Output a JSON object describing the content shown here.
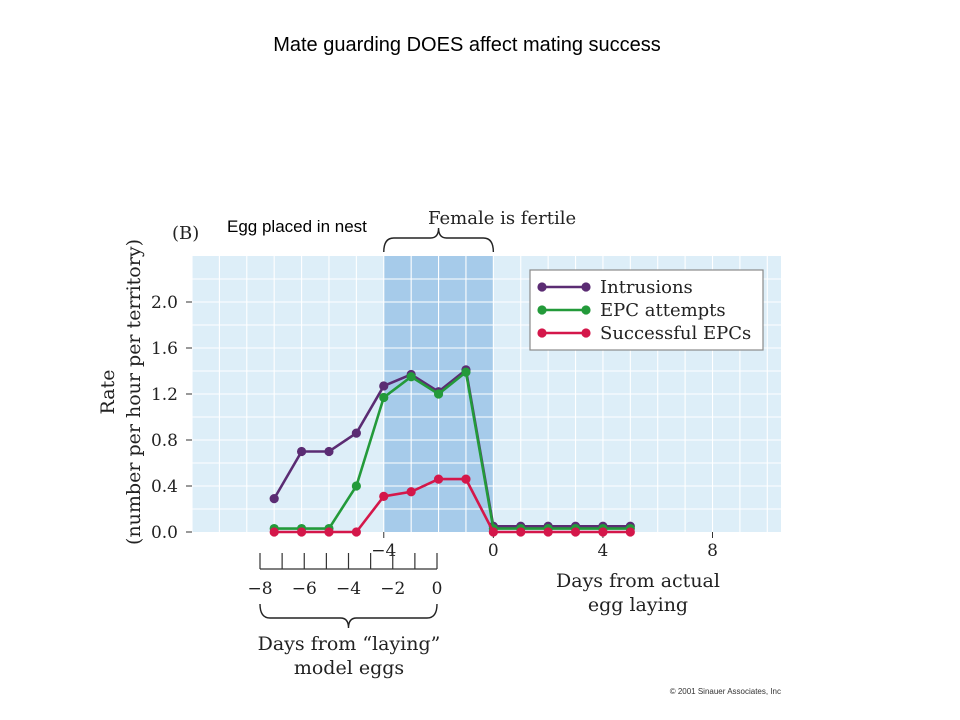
{
  "slide": {
    "title": "Mate guarding DOES affect mating success",
    "annotation": "Egg placed in nest"
  },
  "chart_data": {
    "type": "line",
    "panel_label": "(B)",
    "fertile_label": "Female is fertile",
    "fertile_range": [
      -4,
      0
    ],
    "ylabel_line1": "Rate",
    "ylabel_line2": "(number per hour per territory)",
    "xlabel_top_line1": "Days from actual",
    "xlabel_top_line2": "egg laying",
    "xlabel_bottom_line1": "Days from “laying”",
    "xlabel_bottom_line2": "model eggs",
    "ylim": [
      0,
      2.4
    ],
    "xlim": [
      -11,
      10.5
    ],
    "grid": true,
    "yticks": [
      0.0,
      0.4,
      0.8,
      1.2,
      1.6,
      2.0
    ],
    "ytick_labels": [
      "0.0",
      "0.4",
      "0.8",
      "1.2",
      "1.6",
      "2.0"
    ],
    "xticks_top": [
      -4,
      0,
      4,
      8
    ],
    "xtick_labels_top": [
      "−4",
      "0",
      "4",
      "8"
    ],
    "xticks_bottom_labels": [
      "−8",
      "−6",
      "−4",
      "−2",
      "0"
    ],
    "legend_position": "top-right",
    "colors": {
      "background": "#ddeef8",
      "fertile_band": "#a6cbea",
      "grid": "#ffffff"
    },
    "series": [
      {
        "name": "Intrusions",
        "color": "#5b2c73",
        "x": [
          -8,
          -7,
          -6,
          -5,
          -4,
          -3,
          -2,
          -1,
          0,
          1,
          2,
          3,
          4,
          5
        ],
        "y": [
          0.29,
          0.7,
          0.7,
          0.86,
          1.27,
          1.37,
          1.22,
          1.41,
          0.05,
          0.05,
          0.05,
          0.05,
          0.05,
          0.05
        ]
      },
      {
        "name": "EPC attempts",
        "color": "#239a3a",
        "x": [
          -8,
          -7,
          -6,
          -5,
          -4,
          -3,
          -2,
          -1,
          0,
          1,
          2,
          3,
          4,
          5
        ],
        "y": [
          0.03,
          0.03,
          0.03,
          0.4,
          1.17,
          1.35,
          1.2,
          1.39,
          0.03,
          0.03,
          0.03,
          0.03,
          0.03,
          0.03
        ]
      },
      {
        "name": "Successful EPCs",
        "color": "#d4174a",
        "x": [
          -8,
          -7,
          -6,
          -5,
          -4,
          -3,
          -2,
          -1,
          0,
          1,
          2,
          3,
          4,
          5
        ],
        "y": [
          0.0,
          0.0,
          0.0,
          0.0,
          0.31,
          0.35,
          0.46,
          0.46,
          0.0,
          0.0,
          0.0,
          0.0,
          0.0,
          0.0
        ]
      }
    ]
  },
  "copyright": "© 2001 Sinauer Associates, Inc"
}
